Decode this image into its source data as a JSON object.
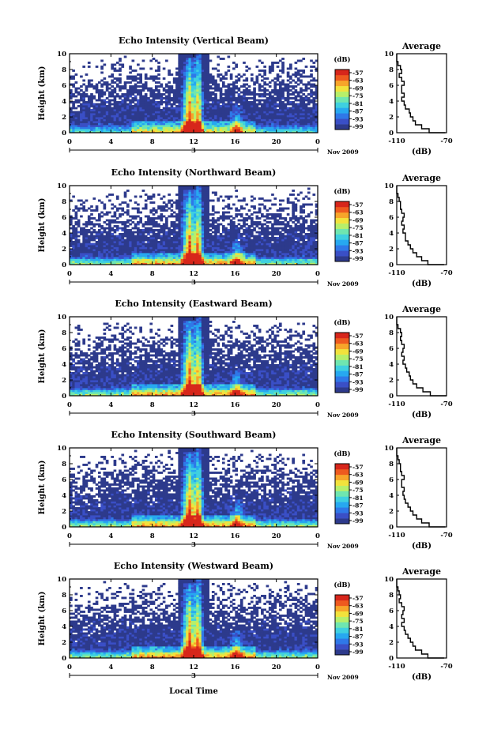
{
  "chart_data": {
    "type": "heatmap",
    "shared": {
      "xlabel": "Local Time",
      "ylabel": "Height (km)",
      "x_ticks": [
        "0",
        "4",
        "8",
        "12",
        "16",
        "20",
        "0"
      ],
      "xlim": [
        0,
        24
      ],
      "y_ticks": [
        "0",
        "2",
        "4",
        "6",
        "8",
        "10"
      ],
      "ylim": [
        0,
        10
      ],
      "date_marker": "3",
      "date_label": "Nov 2009",
      "colorbar_title": "(dB)",
      "colorbar_ticks": [
        "-57",
        "-63",
        "-69",
        "-75",
        "-81",
        "-87",
        "-93",
        "-99"
      ],
      "colormap": [
        "#2d3a8c",
        "#3a4fc6",
        "#2f78e8",
        "#27a8f0",
        "#3fd0e0",
        "#6fe6b0",
        "#b7ef6a",
        "#f2e23c",
        "#f7a52a",
        "#ee5a1f",
        "#d7261b"
      ],
      "avg_title": "Average",
      "avg_xlabel": "(dB)",
      "avg_x_ticks": [
        "-110",
        "-70"
      ],
      "avg_xlim": [
        -110,
        -70
      ],
      "avg_y_ticks": [
        "0",
        "2",
        "4",
        "6",
        "8",
        "10"
      ]
    },
    "panels": [
      {
        "title": "Echo Intensity (Vertical Beam)",
        "profile_heights": [
          0,
          0.5,
          1,
          1.5,
          2,
          2.5,
          3,
          3.5,
          4,
          4.5,
          5,
          5.5,
          6,
          6.5,
          7,
          7.5,
          8,
          8.5,
          9,
          9.5,
          10
        ],
        "profile_db": [
          -71,
          -84,
          -90,
          -95,
          -97,
          -99,
          -100,
          -103,
          -104,
          -106,
          -104,
          -106,
          -106,
          -104,
          -106,
          -108,
          -106,
          -107,
          -109,
          -110,
          -110
        ]
      },
      {
        "title": "Echo Intensity (Northward Beam)",
        "profile_heights": [
          0,
          0.5,
          1,
          1.5,
          2,
          2.5,
          3,
          3.5,
          4,
          4.5,
          5,
          5.5,
          6,
          6.5,
          7,
          7.5,
          8,
          8.5,
          9,
          9.5,
          10
        ],
        "profile_db": [
          -72,
          -85,
          -90,
          -94,
          -97,
          -99,
          -101,
          -103,
          -103,
          -105,
          -104,
          -106,
          -105,
          -104,
          -106,
          -107,
          -107,
          -108,
          -109,
          -110,
          -110
        ]
      },
      {
        "title": "Echo Intensity (Eastward Beam)",
        "profile_heights": [
          0,
          0.5,
          1,
          1.5,
          2,
          2.5,
          3,
          3.5,
          4,
          4.5,
          5,
          5.5,
          6,
          6.5,
          7,
          7.5,
          8,
          8.5,
          9,
          9.5,
          10
        ],
        "profile_db": [
          -70,
          -83,
          -89,
          -94,
          -97,
          -99,
          -100,
          -102,
          -103,
          -105,
          -104,
          -106,
          -105,
          -104,
          -106,
          -107,
          -106,
          -107,
          -109,
          -110,
          -110
        ]
      },
      {
        "title": "Echo Intensity (Southward Beam)",
        "profile_heights": [
          0,
          0.5,
          1,
          1.5,
          2,
          2.5,
          3,
          3.5,
          4,
          4.5,
          5,
          5.5,
          6,
          6.5,
          7,
          7.5,
          8,
          8.5,
          9,
          9.5,
          10
        ],
        "profile_db": [
          -71,
          -84,
          -90,
          -94,
          -97,
          -99,
          -101,
          -103,
          -104,
          -105,
          -104,
          -106,
          -106,
          -104,
          -106,
          -107,
          -107,
          -108,
          -109,
          -110,
          -110
        ]
      },
      {
        "title": "Echo Intensity (Westward Beam)",
        "profile_heights": [
          0,
          0.5,
          1,
          1.5,
          2,
          2.5,
          3,
          3.5,
          4,
          4.5,
          5,
          5.5,
          6,
          6.5,
          7,
          7.5,
          8,
          8.5,
          9,
          9.5,
          10
        ],
        "profile_db": [
          -72,
          -85,
          -90,
          -95,
          -97,
          -99,
          -101,
          -103,
          -104,
          -106,
          -104,
          -106,
          -105,
          -104,
          -106,
          -108,
          -107,
          -108,
          -109,
          -110,
          -110
        ]
      }
    ]
  }
}
